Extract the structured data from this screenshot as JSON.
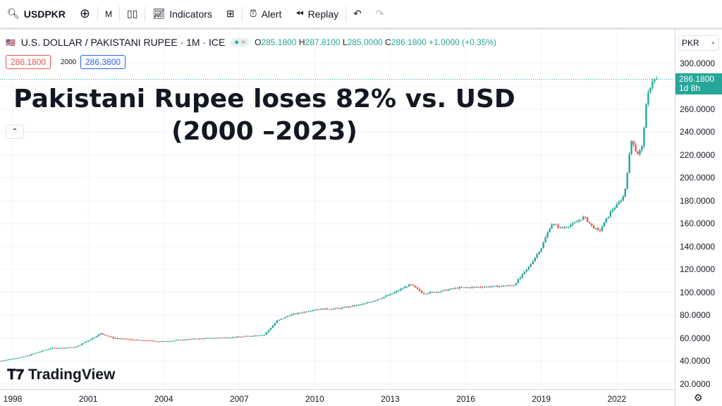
{
  "toolbar": {
    "symbol": "USDPKR",
    "interval": "M",
    "indicators": "Indicators",
    "alert": "Alert",
    "replay": "Replay"
  },
  "legend": {
    "name": "U.S. DOLLAR / PAKISTANI RUPEE · 1M · ICE",
    "o_label": "O",
    "o": "285.1800",
    "h_label": "H",
    "h": "287.8100",
    "l_label": "L",
    "l": "285.0000",
    "c_label": "C",
    "c": "286.1800",
    "change": "+1.0000 (+0.35%)",
    "sell": "286.1800",
    "spread": "2000",
    "buy": "286.3800"
  },
  "title_line1": "Pakistani Rupee loses 82% vs. USD",
  "title_line2": "(2000 –2023)",
  "currency": "PKR",
  "last_price": "286.1800",
  "countdown": "1d 8h",
  "logo": "TradingView",
  "colors": {
    "up": "#26a69a",
    "down": "#ef5350"
  },
  "chart_data": {
    "type": "candlestick",
    "ylim": [
      20,
      300
    ],
    "xlim": [
      1997.5,
      2024.5
    ],
    "y_ticks": [
      "300.0000",
      "280.0000",
      "260.0000",
      "240.0000",
      "220.0000",
      "200.0000",
      "180.0000",
      "160.0000",
      "140.0000",
      "120.0000",
      "100.0000",
      "80.0000",
      "60.0000",
      "40.0000",
      "20.0000"
    ],
    "x_ticks": [
      "1998",
      "2001",
      "2004",
      "2007",
      "2010",
      "2013",
      "2016",
      "2019",
      "2022"
    ],
    "close_anchors": [
      [
        1997.5,
        40
      ],
      [
        1998.5,
        44
      ],
      [
        1999.5,
        51
      ],
      [
        2000.5,
        52
      ],
      [
        2001.0,
        58
      ],
      [
        2001.5,
        64
      ],
      [
        2002.0,
        60
      ],
      [
        2003.0,
        58
      ],
      [
        2004.0,
        57
      ],
      [
        2005.0,
        59
      ],
      [
        2006.0,
        60
      ],
      [
        2007.0,
        61
      ],
      [
        2008.0,
        63
      ],
      [
        2008.5,
        75
      ],
      [
        2009.0,
        80
      ],
      [
        2010.0,
        85
      ],
      [
        2011.0,
        86
      ],
      [
        2012.0,
        90
      ],
      [
        2013.0,
        98
      ],
      [
        2013.8,
        107
      ],
      [
        2014.3,
        99
      ],
      [
        2015.0,
        101
      ],
      [
        2015.7,
        104
      ],
      [
        2017.0,
        105
      ],
      [
        2017.9,
        106
      ],
      [
        2018.5,
        122
      ],
      [
        2019.0,
        139
      ],
      [
        2019.4,
        160
      ],
      [
        2019.8,
        156
      ],
      [
        2020.3,
        160
      ],
      [
        2020.7,
        166
      ],
      [
        2021.0,
        158
      ],
      [
        2021.3,
        153
      ],
      [
        2021.8,
        172
      ],
      [
        2022.0,
        176
      ],
      [
        2022.3,
        185
      ],
      [
        2022.5,
        220
      ],
      [
        2022.6,
        235
      ],
      [
        2022.8,
        220
      ],
      [
        2023.0,
        227
      ],
      [
        2023.2,
        270
      ],
      [
        2023.4,
        285
      ],
      [
        2023.6,
        286.18
      ]
    ]
  }
}
